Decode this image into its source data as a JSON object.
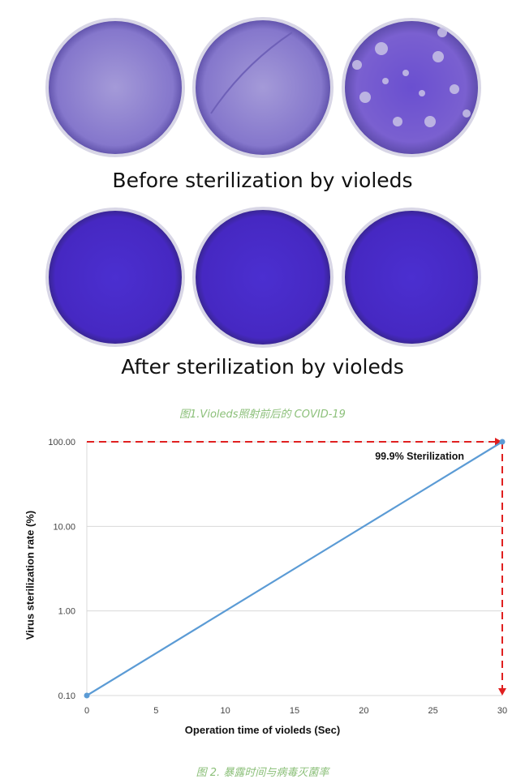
{
  "figure1": {
    "before_label": "Before sterilization by violeds",
    "after_label": "After sterilization by violeds",
    "caption": "图1.Violeds照射前后的 COVID-19",
    "before_colors": [
      "#8a7fd0",
      "#8d80cf",
      "#7a5fd0"
    ],
    "after_color": "#4a2fc8"
  },
  "chart_data": {
    "type": "line",
    "x": [
      0,
      30
    ],
    "y": [
      0.1,
      100
    ],
    "xlabel": "Operation time of violeds (Sec)",
    "ylabel": "Virus sterilization rate (%)",
    "xlim": [
      0,
      30
    ],
    "ylim": [
      0.1,
      100
    ],
    "y_scale": "log",
    "x_ticks": [
      "0",
      "5",
      "10",
      "15",
      "20",
      "25",
      "30"
    ],
    "y_ticks": [
      "100.00",
      "10.00",
      "1.00",
      "0.10"
    ],
    "grid": "horizontal",
    "annotation": "99.9% Sterilization",
    "line_color": "#5b9bd5",
    "annotation_color": "#e02020"
  },
  "figure2": {
    "caption": "图 2. 暴露时间与病毒灭菌率"
  }
}
